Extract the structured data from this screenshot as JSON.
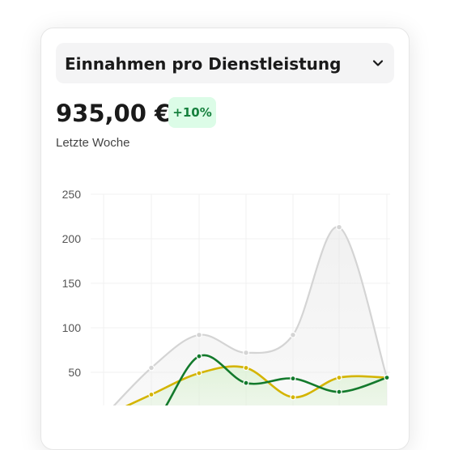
{
  "header": {
    "title": "Einnahmen pro Dienstleistung",
    "chevron_icon": "chevron-down-icon"
  },
  "summary": {
    "amount": "935,00 €",
    "change": "+10%",
    "period": "Letzte Woche"
  },
  "colors": {
    "gray": "#d4d4d4",
    "yellow": "#d4b400",
    "green": "#137a2c",
    "badge_bg": "#dcfce7",
    "badge_text": "#15803d"
  },
  "chart_data": {
    "type": "area",
    "ylim": [
      0,
      250
    ],
    "yticks": [
      250,
      200,
      150,
      100,
      50
    ],
    "grid": true,
    "series": [
      {
        "color": "#d4d4d4",
        "values": [
          0,
          55,
          92,
          72,
          92,
          213,
          44
        ],
        "points": [
          1,
          2,
          3,
          4,
          5,
          6
        ]
      },
      {
        "color": "#d4b400",
        "values": [
          0,
          25,
          49,
          55,
          22,
          44,
          44
        ],
        "points": [
          1,
          2,
          3,
          4,
          5,
          6
        ]
      },
      {
        "color": "#137a2c",
        "values": [
          -15,
          -10,
          68,
          38,
          43,
          28,
          44
        ],
        "points": [
          2,
          3,
          4,
          5,
          6
        ]
      }
    ]
  }
}
